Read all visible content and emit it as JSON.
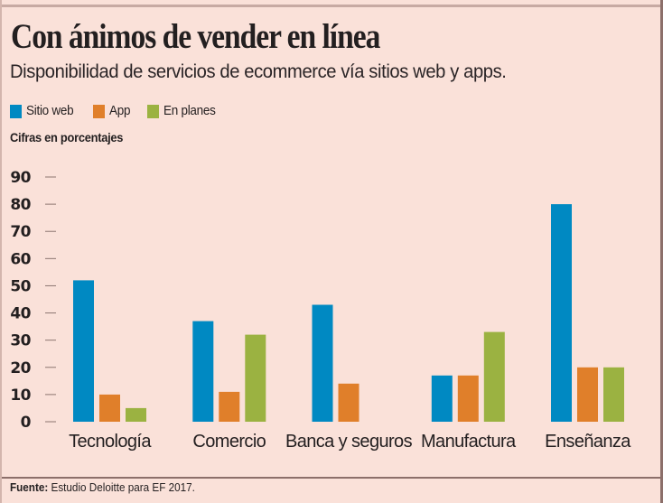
{
  "header": {
    "title": "Con ánimos de vender en línea",
    "subtitle": "Disponibilidad de servicios de ecommerce vía sitios web y apps."
  },
  "legend": [
    {
      "label": "Sitio web",
      "color": "#0089c2"
    },
    {
      "label": "App",
      "color": "#e07f2a"
    },
    {
      "label": "En planes",
      "color": "#9bb241"
    }
  ],
  "units_label": "Cifras en porcentajes",
  "footer": {
    "source_label": "Fuente:",
    "source_text": "Estudio Deloitte para EF 2017."
  },
  "chart_data": {
    "type": "bar",
    "title": "Con ánimos de vender en línea",
    "subtitle": "Disponibilidad de servicios de ecommerce vía sitios web y apps.",
    "xlabel": "",
    "ylabel": "Cifras en porcentajes",
    "categories": [
      "Tecnología",
      "Comercio",
      "Banca y seguros",
      "Manufactura",
      "Enseñanza"
    ],
    "series": [
      {
        "name": "Sitio web",
        "color": "#0089c2",
        "values": [
          52,
          37,
          43,
          17,
          80
        ]
      },
      {
        "name": "App",
        "color": "#e07f2a",
        "values": [
          10,
          11,
          14,
          17,
          20
        ]
      },
      {
        "name": "En planes",
        "color": "#9bb241",
        "values": [
          5,
          32,
          null,
          33,
          20
        ]
      }
    ],
    "ylim": [
      0,
      90
    ],
    "yticks": [
      0,
      10,
      20,
      30,
      40,
      50,
      60,
      70,
      80,
      90
    ],
    "grid": false,
    "legend_position": "top-left"
  }
}
